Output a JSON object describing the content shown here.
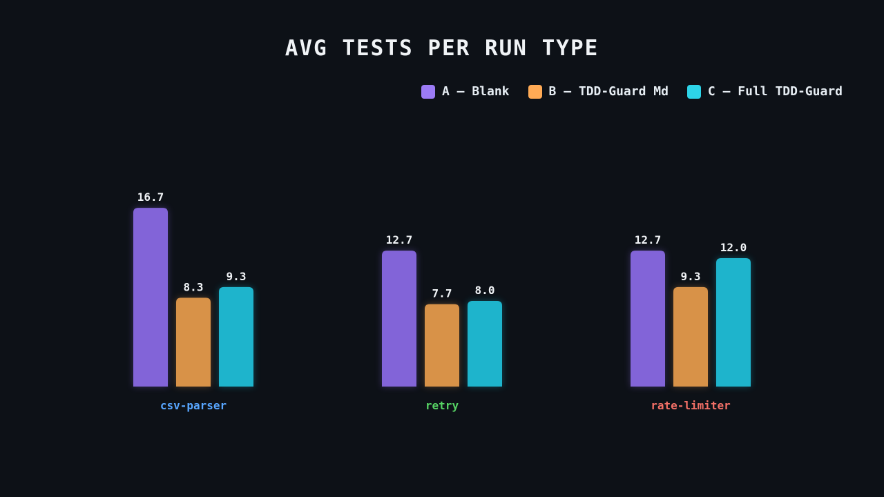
{
  "chart_data": {
    "type": "bar",
    "title": "AVG TESTS PER RUN TYPE",
    "xlabel": "",
    "ylabel": "",
    "categories": [
      "csv-parser",
      "retry",
      "rate-limiter"
    ],
    "category_colors": [
      "#58a6ff",
      "#56d364",
      "#f47067"
    ],
    "series": [
      {
        "name": "A – Blank",
        "color": "#8264d8",
        "values": [
          16.7,
          12.7,
          12.7
        ]
      },
      {
        "name": "B – TDD-Guard Md",
        "color": "#d89248",
        "values": [
          8.3,
          7.7,
          9.3
        ]
      },
      {
        "name": "C – Full TDD-Guard",
        "color": "#1eb4cc",
        "values": [
          9.3,
          8.0,
          12.0
        ]
      }
    ],
    "legend_swatch_colors": [
      "#9b7bf5",
      "#ffaa55",
      "#2dd4e8"
    ],
    "value_format": "one-decimal",
    "ylim": [
      0,
      20
    ],
    "grid": false,
    "axes_visible": false,
    "legend_position": "top-right"
  }
}
